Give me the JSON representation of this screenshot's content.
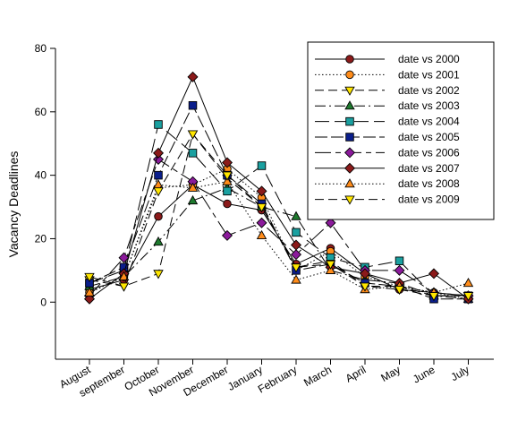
{
  "chart_data": {
    "type": "line",
    "title": "",
    "xlabel": "",
    "ylabel": "Vacancy Deadlines",
    "ylim": [
      -18,
      80
    ],
    "yticks": [
      0,
      20,
      40,
      60,
      80
    ],
    "grid": false,
    "legend_position": "top-right",
    "categories": [
      "August",
      "september",
      "October",
      "November",
      "December",
      "January",
      "February",
      "March",
      "April",
      "May",
      "June",
      "July"
    ],
    "series": [
      {
        "name": "date vs 2000",
        "values": [
          4,
          7,
          27,
          37,
          31,
          29,
          12,
          17,
          9,
          4,
          3,
          2
        ],
        "line_style": "solid",
        "marker": "circle",
        "color": "#8B1A1A"
      },
      {
        "name": "date vs 2001",
        "values": [
          3,
          8,
          36,
          37,
          42,
          33,
          10,
          16,
          8,
          5,
          3,
          1
        ],
        "line_style": "dotted",
        "marker": "circle",
        "color": "#FF8C1A"
      },
      {
        "name": "date vs 2002",
        "values": [
          7,
          5,
          9,
          53,
          39,
          30,
          11,
          13,
          5,
          5,
          2,
          2
        ],
        "line_style": "dash",
        "marker": "triangle-down",
        "color": "#FFE600"
      },
      {
        "name": "date vs 2003",
        "values": [
          5,
          8,
          19,
          32,
          36,
          30,
          27,
          10,
          7,
          6,
          2,
          1
        ],
        "line_style": "dashdot",
        "marker": "triangle-up",
        "color": "#1E7A2E"
      },
      {
        "name": "date vs 2004",
        "values": [
          6,
          10,
          56,
          47,
          35,
          43,
          22,
          14,
          11,
          13,
          2,
          2
        ],
        "line_style": "longdash",
        "marker": "square",
        "color": "#1AA0A0"
      },
      {
        "name": "date vs 2005",
        "values": [
          6,
          11,
          40,
          62,
          40,
          31,
          10,
          12,
          6,
          5,
          1,
          1
        ],
        "line_style": "longdash2",
        "marker": "square",
        "color": "#0A1E8C"
      },
      {
        "name": "date vs 2006",
        "values": [
          2,
          14,
          45,
          38,
          21,
          25,
          15,
          25,
          10,
          10,
          3,
          2
        ],
        "line_style": "longshort",
        "marker": "diamond",
        "color": "#8B1A9B"
      },
      {
        "name": "date vs 2007",
        "values": [
          1,
          9,
          47,
          71,
          44,
          35,
          18,
          11,
          9,
          6,
          9,
          1
        ],
        "line_style": "solid",
        "marker": "diamond",
        "color": "#8B1A1A"
      },
      {
        "name": "date vs 2008",
        "values": [
          3,
          8,
          37,
          36,
          38,
          21,
          7,
          10,
          4,
          5,
          3,
          6
        ],
        "line_style": "dotted",
        "marker": "triangle-up",
        "color": "#FF8C1A"
      },
      {
        "name": "date vs 2009",
        "values": [
          8,
          5,
          35,
          53,
          40,
          30,
          11,
          12,
          5,
          4,
          2,
          2
        ],
        "line_style": "dash",
        "marker": "triangle-down",
        "color": "#FFE600"
      }
    ]
  }
}
